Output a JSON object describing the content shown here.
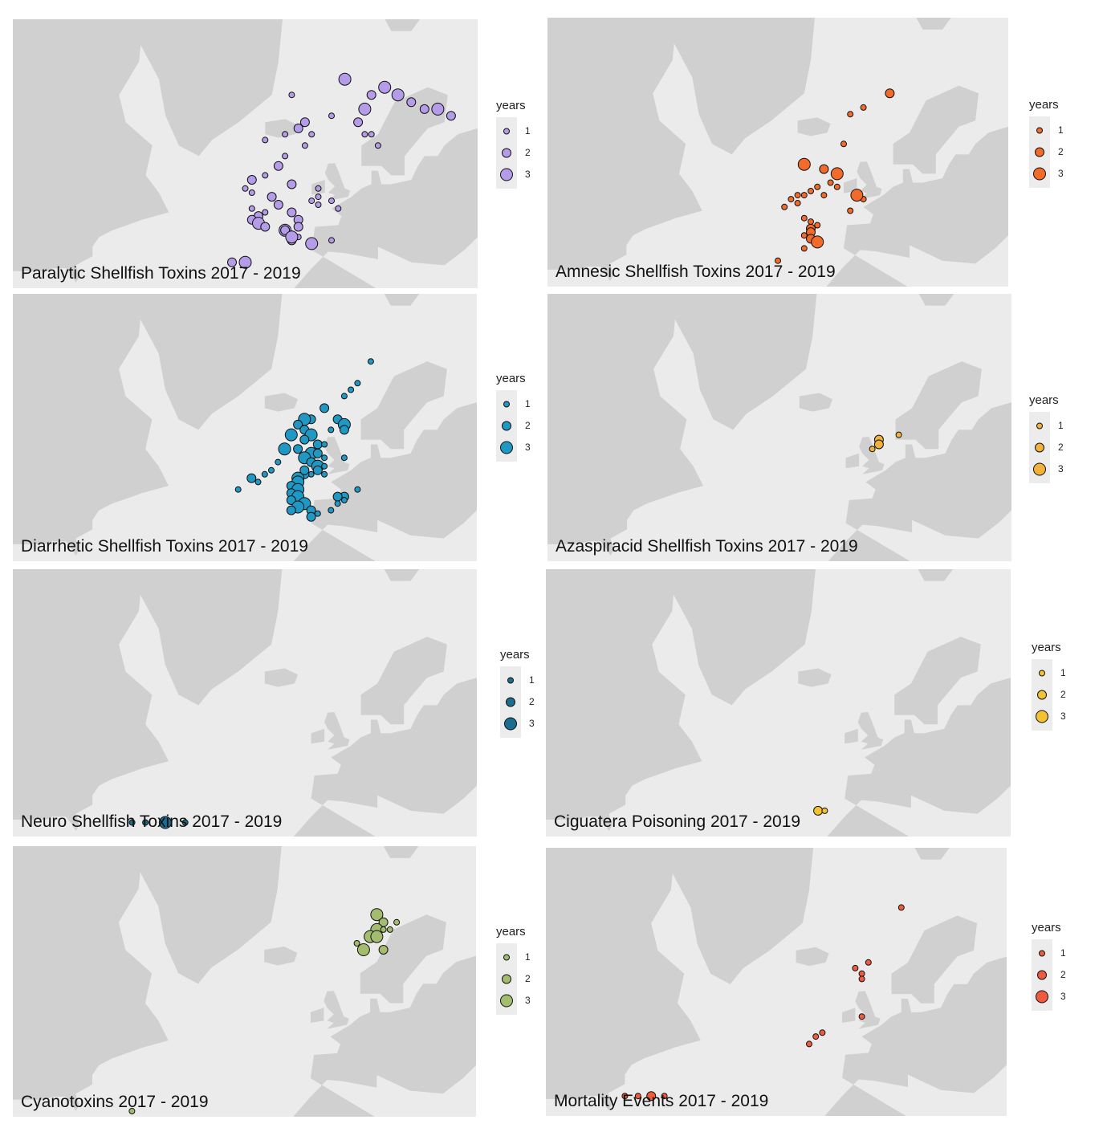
{
  "colors": {
    "ocean": "#ebebeb",
    "land": "#d0d0d0",
    "stroke": "#111111"
  },
  "legend_title": "years",
  "legend_levels": [
    "1",
    "2",
    "3"
  ],
  "panels": [
    {
      "title": "Paralytic Shellfish Toxins 2017 - 2019",
      "color": "#b59ce8",
      "points": [
        [
          -50,
          72,
          3
        ],
        [
          -58,
          70,
          1
        ],
        [
          -46,
          70,
          2
        ],
        [
          -44,
          71,
          3
        ],
        [
          -42,
          70,
          3
        ],
        [
          -40,
          69,
          2
        ],
        [
          -38,
          68,
          2
        ],
        [
          -36,
          68,
          3
        ],
        [
          -34,
          67,
          2
        ],
        [
          -47,
          68,
          3
        ],
        [
          -48,
          66,
          2
        ],
        [
          -47,
          64,
          1
        ],
        [
          -46,
          64,
          1
        ],
        [
          -45,
          62,
          1
        ],
        [
          -52,
          67,
          1
        ],
        [
          -56,
          66,
          2
        ],
        [
          -57,
          65,
          2
        ],
        [
          -55,
          64,
          1
        ],
        [
          -59,
          64,
          1
        ],
        [
          -62,
          63,
          1
        ],
        [
          -56,
          62,
          1
        ],
        [
          -59,
          60,
          1
        ],
        [
          -60,
          58,
          2
        ],
        [
          -62,
          56,
          1
        ],
        [
          -64,
          55,
          2
        ],
        [
          -58,
          54,
          2
        ],
        [
          -65,
          53,
          1
        ],
        [
          -64,
          52,
          1
        ],
        [
          -54,
          51,
          1
        ],
        [
          -52,
          50,
          1
        ],
        [
          -55,
          50,
          1
        ],
        [
          -54,
          49,
          1
        ],
        [
          -51,
          48,
          1
        ],
        [
          -64,
          48,
          1
        ],
        [
          -62,
          47,
          1
        ],
        [
          -63,
          46,
          2
        ],
        [
          -64,
          45,
          2
        ],
        [
          -63,
          44,
          3
        ],
        [
          -62,
          43,
          2
        ],
        [
          -59,
          42,
          3
        ],
        [
          -58,
          41,
          1
        ],
        [
          -57,
          40,
          1
        ],
        [
          -58,
          39,
          2
        ],
        [
          -55,
          38,
          3
        ],
        [
          -52,
          39,
          1
        ],
        [
          -67,
          32,
          2
        ],
        [
          -65,
          32,
          3
        ],
        [
          -61,
          51,
          2
        ],
        [
          -60,
          49,
          2
        ],
        [
          -58,
          47,
          2
        ],
        [
          -57,
          45,
          2
        ],
        [
          -57,
          43,
          2
        ],
        [
          -59,
          42,
          2
        ],
        [
          -58,
          40,
          3
        ],
        [
          -54,
          53,
          1
        ]
      ]
    },
    {
      "title": "Amnesic Shellfish Toxins 2017 - 2019",
      "color": "#f36b2a",
      "points": [
        [
          -48,
          70,
          2
        ],
        [
          -54,
          67,
          1
        ],
        [
          -52,
          68,
          1
        ],
        [
          -55,
          62,
          1
        ],
        [
          -58,
          57,
          2
        ],
        [
          -56,
          56,
          3
        ],
        [
          -57,
          54,
          1
        ],
        [
          -56,
          53,
          1
        ],
        [
          -59,
          53,
          1
        ],
        [
          -58,
          51,
          1
        ],
        [
          -60,
          52,
          1
        ],
        [
          -61,
          51,
          1
        ],
        [
          -62,
          51,
          1
        ],
        [
          -63,
          50,
          1
        ],
        [
          -62,
          49,
          1
        ],
        [
          -64,
          48,
          1
        ],
        [
          -52,
          50,
          1
        ],
        [
          -54,
          47,
          1
        ],
        [
          -61,
          45,
          1
        ],
        [
          -60,
          44,
          1
        ],
        [
          -59,
          43,
          1
        ],
        [
          -60,
          42,
          2
        ],
        [
          -60,
          41,
          2
        ],
        [
          -61,
          40,
          1
        ],
        [
          -60,
          39,
          2
        ],
        [
          -59,
          38,
          3
        ],
        [
          -61,
          36,
          1
        ],
        [
          -65,
          32,
          1
        ],
        [
          -53,
          51,
          3
        ],
        [
          -61,
          58,
          3
        ]
      ]
    },
    {
      "title": "Diarrhetic Shellfish Toxins 2017 - 2019",
      "color": "#1f98c4",
      "points": [
        [
          -46,
          71,
          1
        ],
        [
          -48,
          68,
          1
        ],
        [
          -49,
          67,
          1
        ],
        [
          -50,
          66,
          1
        ],
        [
          -53,
          64,
          2
        ],
        [
          -51,
          62,
          2
        ],
        [
          -50,
          61,
          3
        ],
        [
          -50,
          60,
          2
        ],
        [
          -52,
          60,
          1
        ],
        [
          -55,
          62,
          2
        ],
        [
          -56,
          62,
          3
        ],
        [
          -57,
          61,
          2
        ],
        [
          -56,
          60,
          2
        ],
        [
          -55,
          59,
          3
        ],
        [
          -58,
          59,
          3
        ],
        [
          -56,
          58,
          2
        ],
        [
          -54,
          57,
          2
        ],
        [
          -53,
          57,
          1
        ],
        [
          -57,
          56,
          2
        ],
        [
          -55,
          55,
          3
        ],
        [
          -54,
          55,
          2
        ],
        [
          -53,
          54,
          1
        ],
        [
          -56,
          54,
          3
        ],
        [
          -55,
          53,
          2
        ],
        [
          -54,
          52,
          3
        ],
        [
          -53,
          52,
          1
        ],
        [
          -54,
          51,
          2
        ],
        [
          -55,
          50,
          1
        ],
        [
          -56,
          50,
          2
        ],
        [
          -57,
          49,
          3
        ],
        [
          -57,
          48,
          3
        ],
        [
          -58,
          47,
          2
        ],
        [
          -57,
          46,
          3
        ],
        [
          -58,
          45,
          2
        ],
        [
          -57,
          44,
          3
        ],
        [
          -58,
          43,
          2
        ],
        [
          -56,
          42,
          3
        ],
        [
          -57,
          41,
          3
        ],
        [
          -58,
          40,
          2
        ],
        [
          -55,
          40,
          2
        ],
        [
          -54,
          39,
          1
        ],
        [
          -55,
          38,
          2
        ],
        [
          -52,
          40,
          1
        ],
        [
          -48,
          46,
          1
        ],
        [
          -50,
          44,
          2
        ],
        [
          -51,
          44,
          2
        ],
        [
          -50,
          43,
          1
        ],
        [
          -51,
          42,
          1
        ],
        [
          -60,
          53,
          1
        ],
        [
          -61,
          51,
          1
        ],
        [
          -62,
          50,
          1
        ],
        [
          -64,
          49,
          2
        ],
        [
          -63,
          48,
          1
        ],
        [
          -66,
          46,
          1
        ],
        [
          -59,
          56,
          3
        ],
        [
          -56,
          51,
          2
        ],
        [
          -53,
          50,
          1
        ],
        [
          -50,
          54,
          1
        ]
      ]
    },
    {
      "title": "Azaspiracid Shellfish Toxins 2017 - 2019",
      "color": "#f2b13b",
      "points": [
        [
          -47,
          59,
          1
        ],
        [
          -50,
          58,
          2
        ],
        [
          -50,
          57,
          2
        ],
        [
          -51,
          56,
          1
        ]
      ]
    },
    {
      "title": "Neuro Shellfish Toxins 2017 - 2019",
      "color": "#1b6e8f",
      "points": [
        [
          -82,
          28,
          1
        ],
        [
          -80,
          28,
          1
        ],
        [
          -77,
          28,
          3
        ],
        [
          -74,
          28,
          1
        ]
      ]
    },
    {
      "title": "Ciguatera Poisoning 2017 - 2019",
      "color": "#f2c230",
      "points": [
        [
          -59,
          32,
          2
        ],
        [
          -58,
          32,
          1
        ]
      ]
    },
    {
      "title": "Cyanotoxins 2017 - 2019",
      "color": "#a3bc6d",
      "points": [
        [
          -45,
          71,
          3
        ],
        [
          -44,
          70,
          2
        ],
        [
          -45,
          69,
          3
        ],
        [
          -46,
          68,
          3
        ],
        [
          -45,
          68,
          3
        ],
        [
          -44,
          69,
          1
        ],
        [
          -43,
          69,
          1
        ],
        [
          -42,
          70,
          1
        ],
        [
          -44,
          66,
          2
        ],
        [
          -48,
          67,
          1
        ],
        [
          -47,
          66,
          3
        ],
        [
          -82,
          25,
          1
        ]
      ]
    },
    {
      "title": "Mortality Events 2017 - 2019",
      "color": "#f05b3e",
      "points": [
        [
          -46,
          72,
          1
        ],
        [
          -51,
          64,
          1
        ],
        [
          -53,
          63,
          1
        ],
        [
          -52,
          62,
          1
        ],
        [
          -52,
          61,
          1
        ],
        [
          -52,
          53,
          1
        ],
        [
          -58,
          49,
          1
        ],
        [
          -59,
          48,
          1
        ],
        [
          -60,
          46,
          1
        ],
        [
          -88,
          30,
          1
        ],
        [
          -86,
          30,
          1
        ],
        [
          -84,
          30,
          2
        ],
        [
          -82,
          30,
          1
        ]
      ]
    }
  ]
}
